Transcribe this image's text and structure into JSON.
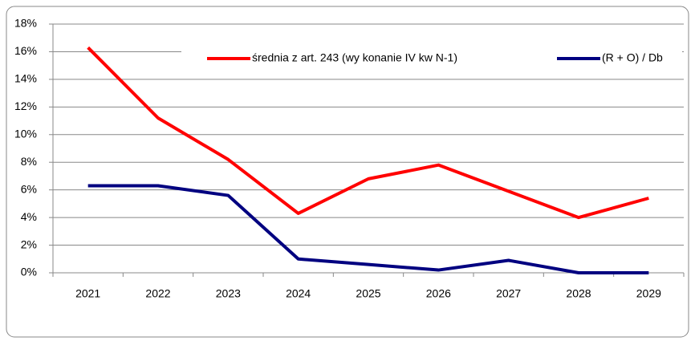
{
  "chart_data": {
    "type": "line",
    "categories": [
      "2021",
      "2022",
      "2023",
      "2024",
      "2025",
      "2026",
      "2027",
      "2028",
      "2029"
    ],
    "series": [
      {
        "name": "średnia z art. 243 (wy konanie IV kw N-1)",
        "color": "#ff0000",
        "values": [
          16.3,
          11.2,
          8.2,
          4.3,
          6.8,
          7.8,
          5.9,
          4.0,
          5.4
        ]
      },
      {
        "name": "(R + O) / Db",
        "color": "#000080",
        "values": [
          6.3,
          6.3,
          5.6,
          1.0,
          0.6,
          0.2,
          0.9,
          0.0,
          0.0
        ]
      }
    ],
    "ylim": [
      0,
      18
    ],
    "yticks": [
      {
        "value": 0,
        "label": "0%"
      },
      {
        "value": 2,
        "label": "2%"
      },
      {
        "value": 4,
        "label": "4%"
      },
      {
        "value": 6,
        "label": "6%"
      },
      {
        "value": 8,
        "label": "8%"
      },
      {
        "value": 10,
        "label": "10%"
      },
      {
        "value": 12,
        "label": "12%"
      },
      {
        "value": 14,
        "label": "14%"
      },
      {
        "value": 16,
        "label": "16%"
      },
      {
        "value": 18,
        "label": "18%"
      }
    ],
    "grid": true
  }
}
